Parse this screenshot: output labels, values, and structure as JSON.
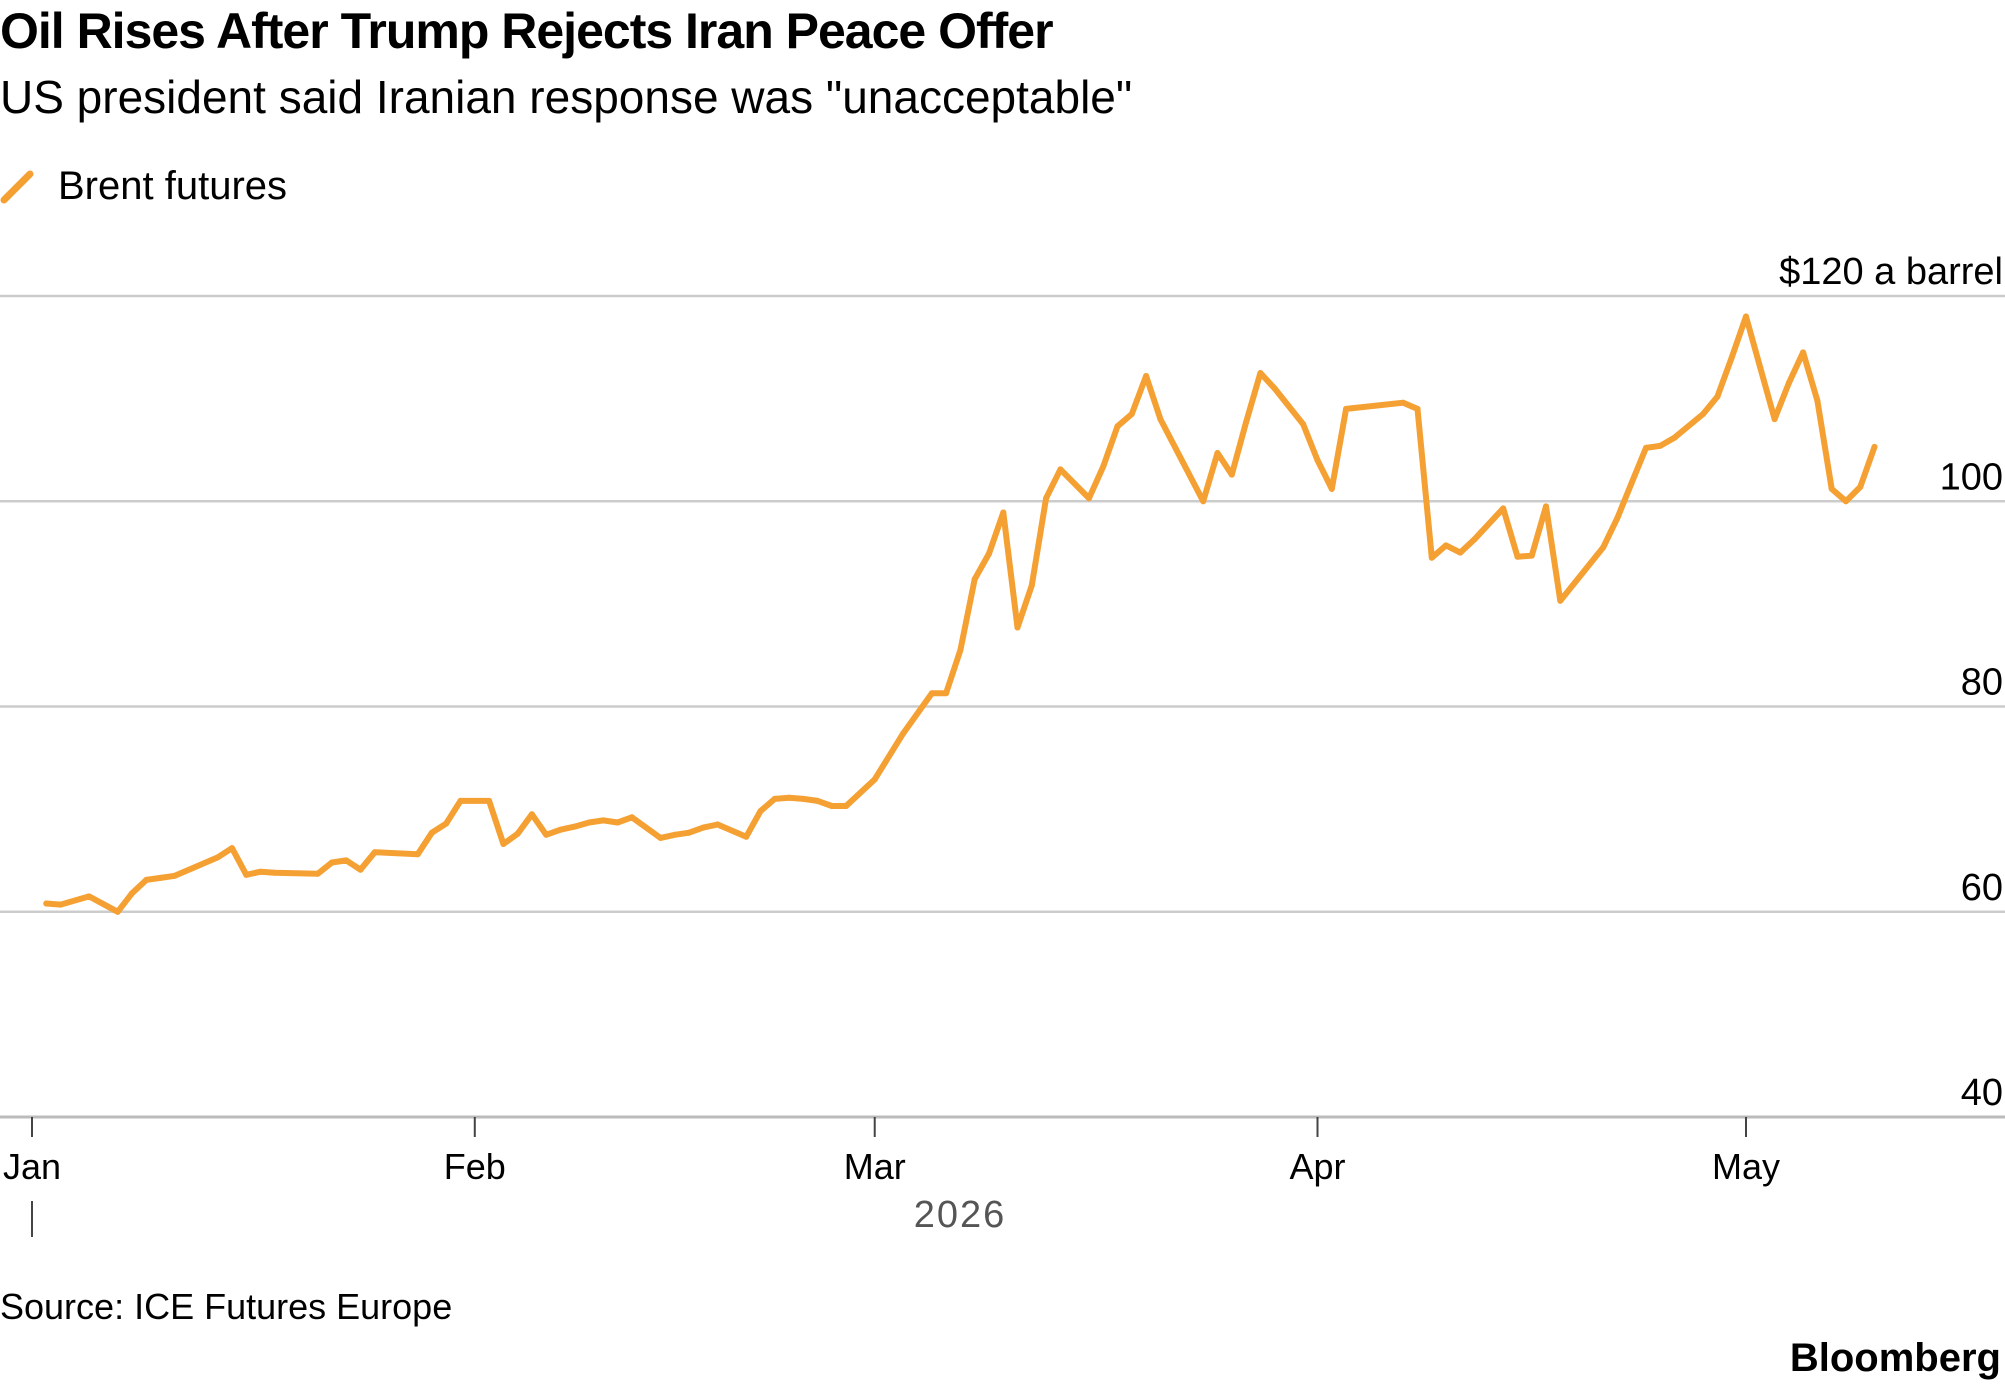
{
  "header": {
    "title": "Oil Rises After Trump Rejects Iran Peace Offer",
    "subtitle": "US president said Iranian response was \"unacceptable\""
  },
  "footer": {
    "source": "Source: ICE Futures Europe",
    "brand": "Bloomberg"
  },
  "colors": {
    "series": "#f5a033",
    "grid": "#cccccc",
    "axis": "#bbbbbb",
    "text": "#000000",
    "year_text": "#555555"
  },
  "chart_data": {
    "type": "line",
    "title": "Oil Rises After Trump Rejects Iran Peace Offer",
    "subtitle": "US president said Iranian response was \"unacceptable\"",
    "ylabel": "",
    "unit_label": "$120 a barrel",
    "ylim": [
      40,
      120
    ],
    "y_ticks": [
      40,
      60,
      80,
      100,
      120
    ],
    "y_tick_labels": [
      "40",
      "60",
      "80",
      "100",
      "$120 a barrel"
    ],
    "x_ticks": [
      "2026-01-01",
      "2026-02-01",
      "2026-03-01",
      "2026-04-01",
      "2026-05-01"
    ],
    "x_tick_labels": [
      "Jan",
      "Feb",
      "Mar",
      "Apr",
      "May"
    ],
    "x_year_label": "2026",
    "grid": true,
    "y_axis_position": "right",
    "legend_position": "top-left",
    "series": [
      {
        "name": "Brent futures",
        "x": [
          "2026-01-02",
          "2026-01-03",
          "2026-01-05",
          "2026-01-07",
          "2026-01-08",
          "2026-01-09",
          "2026-01-10",
          "2026-01-11",
          "2026-01-14",
          "2026-01-15",
          "2026-01-16",
          "2026-01-17",
          "2026-01-18",
          "2026-01-21",
          "2026-01-22",
          "2026-01-23",
          "2026-01-24",
          "2026-01-25",
          "2026-01-28",
          "2026-01-29",
          "2026-01-30",
          "2026-01-31",
          "2026-02-02",
          "2026-02-03",
          "2026-02-04",
          "2026-02-05",
          "2026-02-06",
          "2026-02-07",
          "2026-02-08",
          "2026-02-09",
          "2026-02-10",
          "2026-02-11",
          "2026-02-12",
          "2026-02-14",
          "2026-02-15",
          "2026-02-16",
          "2026-02-17",
          "2026-02-18",
          "2026-02-20",
          "2026-02-21",
          "2026-02-22",
          "2026-02-23",
          "2026-02-24",
          "2026-02-25",
          "2026-02-26",
          "2026-02-27",
          "2026-03-01",
          "2026-03-03",
          "2026-03-05",
          "2026-03-06",
          "2026-03-07",
          "2026-03-08",
          "2026-03-09",
          "2026-03-10",
          "2026-03-11",
          "2026-03-12",
          "2026-03-13",
          "2026-03-14",
          "2026-03-16",
          "2026-03-17",
          "2026-03-18",
          "2026-03-19",
          "2026-03-20",
          "2026-03-21",
          "2026-03-24",
          "2026-03-25",
          "2026-03-26",
          "2026-03-27",
          "2026-03-28",
          "2026-03-29",
          "2026-03-31",
          "2026-04-01",
          "2026-04-02",
          "2026-04-03",
          "2026-04-07",
          "2026-04-08",
          "2026-04-09",
          "2026-04-10",
          "2026-04-11",
          "2026-04-12",
          "2026-04-14",
          "2026-04-15",
          "2026-04-16",
          "2026-04-17",
          "2026-04-18",
          "2026-04-21",
          "2026-04-22",
          "2026-04-23",
          "2026-04-24",
          "2026-04-25",
          "2026-04-26",
          "2026-04-28",
          "2026-04-29",
          "2026-04-30",
          "2026-05-01",
          "2026-05-02",
          "2026-05-03",
          "2026-05-04",
          "2026-05-05",
          "2026-05-06",
          "2026-05-07",
          "2026-05-08",
          "2026-05-09",
          "2026-05-10"
        ],
        "values": [
          60.8,
          60.7,
          61.5,
          60.0,
          61.8,
          63.1,
          63.3,
          63.5,
          65.3,
          66.2,
          63.6,
          63.9,
          63.8,
          63.7,
          64.8,
          65.0,
          64.1,
          65.8,
          65.6,
          67.7,
          68.6,
          70.8,
          70.8,
          66.6,
          67.6,
          69.5,
          67.5,
          68.0,
          68.3,
          68.7,
          68.9,
          68.7,
          69.2,
          67.2,
          67.5,
          67.7,
          68.2,
          68.5,
          67.3,
          69.8,
          71.0,
          71.1,
          71.0,
          70.8,
          70.3,
          70.3,
          72.9,
          77.4,
          81.3,
          81.3,
          85.5,
          92.4,
          94.9,
          98.9,
          87.7,
          91.8,
          100.3,
          103.1,
          100.3,
          103.4,
          107.3,
          108.5,
          112.2,
          108.0,
          100.0,
          104.7,
          102.6,
          107.7,
          112.5,
          111.0,
          107.5,
          104.0,
          101.2,
          109.0,
          109.6,
          109.0,
          94.5,
          95.7,
          95.0,
          96.3,
          99.3,
          94.6,
          94.7,
          99.5,
          90.3,
          95.5,
          98.4,
          101.8,
          105.2,
          105.4,
          106.2,
          108.5,
          110.2,
          114.0,
          118.0,
          113.0,
          108.0,
          111.5,
          114.5,
          109.8,
          101.2,
          100.0,
          101.4,
          105.3
        ]
      }
    ]
  }
}
